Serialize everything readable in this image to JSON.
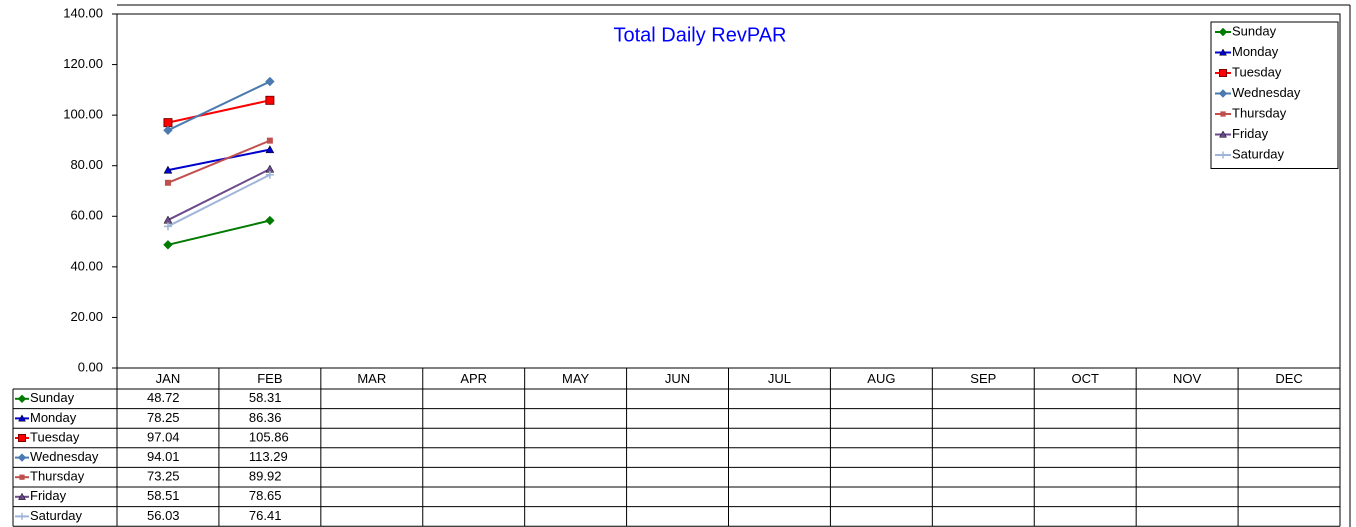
{
  "chart_data": {
    "type": "line",
    "title": "Total Daily RevPAR",
    "categories": [
      "JAN",
      "FEB",
      "MAR",
      "APR",
      "MAY",
      "JUN",
      "JUL",
      "AUG",
      "SEP",
      "OCT",
      "NOV",
      "DEC"
    ],
    "series": [
      {
        "name": "Sunday",
        "color": "#007a00",
        "marker": "diamond",
        "values": [
          48.72,
          58.31,
          null,
          null,
          null,
          null,
          null,
          null,
          null,
          null,
          null,
          null
        ]
      },
      {
        "name": "Monday",
        "color": "#0000cc",
        "marker": "triangle",
        "values": [
          78.25,
          86.36,
          null,
          null,
          null,
          null,
          null,
          null,
          null,
          null,
          null,
          null
        ]
      },
      {
        "name": "Tuesday",
        "color": "#ff0000",
        "marker": "square",
        "values": [
          97.04,
          105.86,
          null,
          null,
          null,
          null,
          null,
          null,
          null,
          null,
          null,
          null
        ]
      },
      {
        "name": "Wednesday",
        "color": "#4a7ab0",
        "marker": "diamond",
        "values": [
          94.01,
          113.29,
          null,
          null,
          null,
          null,
          null,
          null,
          null,
          null,
          null,
          null
        ]
      },
      {
        "name": "Thursday",
        "color": "#c0504d",
        "marker": "smallsquare",
        "values": [
          73.25,
          89.92,
          null,
          null,
          null,
          null,
          null,
          null,
          null,
          null,
          null,
          null
        ]
      },
      {
        "name": "Friday",
        "color": "#6a4a8a",
        "marker": "triangle",
        "values": [
          58.51,
          78.65,
          null,
          null,
          null,
          null,
          null,
          null,
          null,
          null,
          null,
          null
        ]
      },
      {
        "name": "Saturday",
        "color": "#9fb4d8",
        "marker": "plus",
        "values": [
          56.03,
          76.41,
          null,
          null,
          null,
          null,
          null,
          null,
          null,
          null,
          null,
          null
        ]
      }
    ],
    "ylim": [
      0,
      140
    ],
    "yticks": [
      {
        "value": 0,
        "label": "0.00"
      },
      {
        "value": 20,
        "label": "20.00"
      },
      {
        "value": 40,
        "label": "40.00"
      },
      {
        "value": 60,
        "label": "60.00"
      },
      {
        "value": 80,
        "label": "80.00"
      },
      {
        "value": 100,
        "label": "100.00"
      },
      {
        "value": 120,
        "label": "120.00"
      },
      {
        "value": 140,
        "label": "140.00"
      }
    ],
    "grid": false,
    "legend": "top-right",
    "data_table": true
  }
}
